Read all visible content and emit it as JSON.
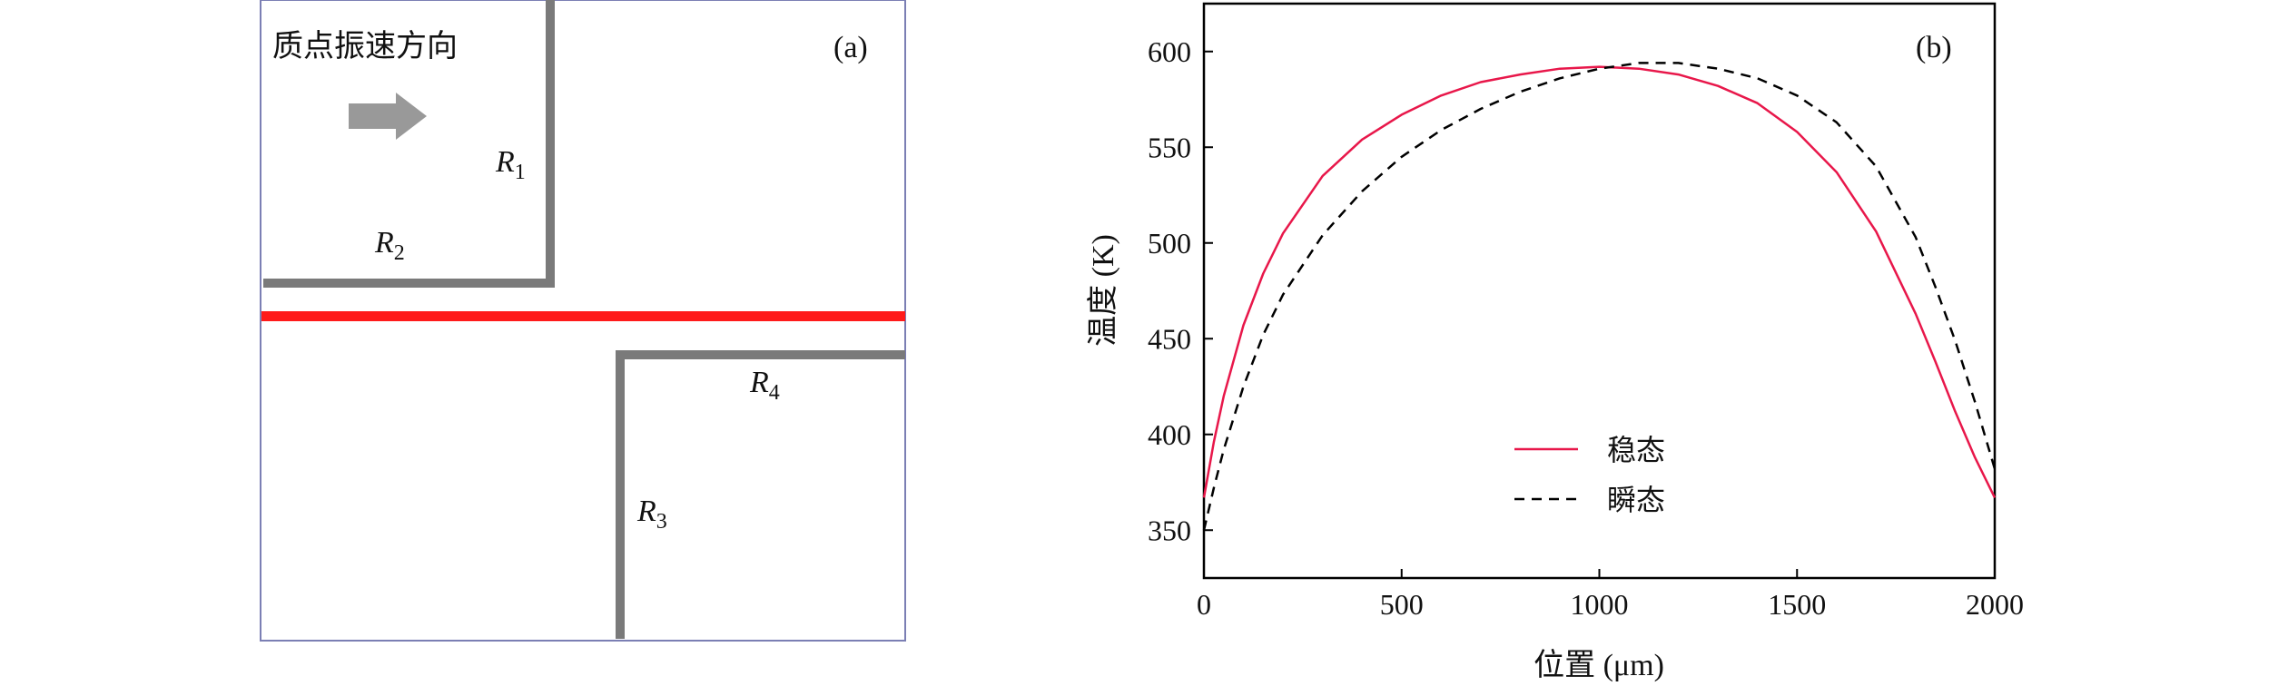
{
  "panel_a": {
    "label": "(a)",
    "direction_text": "质点振速方向",
    "region_labels": [
      {
        "letter": "R",
        "sub": "1"
      },
      {
        "letter": "R",
        "sub": "2"
      },
      {
        "letter": "R",
        "sub": "3"
      },
      {
        "letter": "R",
        "sub": "4"
      }
    ],
    "colors": {
      "frame": "#7b7fb4",
      "wall": "#7a7a7a",
      "arrow": "#999999",
      "beam": "#ff1a1a"
    }
  },
  "chart_data": {
    "type": "line",
    "panel_label": "(b)",
    "xlabel": "位置 (μm)",
    "ylabel": "温度 (K)",
    "xlim": [
      0,
      2000
    ],
    "ylim": [
      325,
      625
    ],
    "xticks": [
      0,
      500,
      1000,
      1500,
      2000
    ],
    "yticks": [
      350,
      400,
      450,
      500,
      550,
      600
    ],
    "grid": false,
    "legend_position": "lower-center",
    "series": [
      {
        "name": "稳态",
        "style": "solid",
        "color": "#e8174a",
        "x": [
          0,
          25,
          50,
          100,
          150,
          200,
          300,
          400,
          500,
          600,
          700,
          800,
          900,
          1000,
          1100,
          1200,
          1300,
          1400,
          1500,
          1600,
          1700,
          1800,
          1850,
          1900,
          1950,
          2000
        ],
        "y": [
          367,
          396,
          420,
          457,
          484,
          505,
          535,
          554,
          567,
          577,
          584,
          588,
          591,
          592,
          591,
          588,
          582,
          573,
          558,
          537,
          506,
          463,
          438,
          412,
          388,
          367
        ]
      },
      {
        "name": "瞬态",
        "style": "dashed",
        "color": "#000000",
        "x": [
          0,
          25,
          50,
          100,
          150,
          200,
          300,
          400,
          500,
          600,
          700,
          800,
          900,
          1000,
          1100,
          1200,
          1300,
          1400,
          1500,
          1600,
          1700,
          1800,
          1850,
          1900,
          1950,
          2000
        ],
        "y": [
          350,
          372,
          392,
          425,
          452,
          473,
          504,
          527,
          545,
          559,
          570,
          579,
          586,
          591,
          594,
          594,
          591,
          586,
          577,
          563,
          540,
          503,
          477,
          449,
          417,
          382
        ]
      }
    ]
  }
}
